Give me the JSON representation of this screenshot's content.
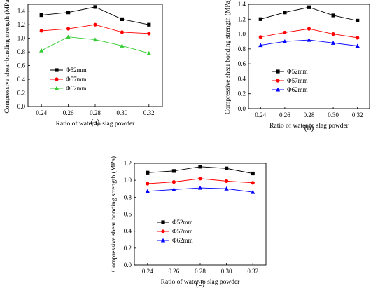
{
  "chart_data": [
    {
      "type": "line",
      "panel_label": "(a)",
      "xlabel": "Ratio of water to slag powder",
      "ylabel": "Compressive shear bonding strength (MPa)",
      "x": [
        0.24,
        0.26,
        0.28,
        0.3,
        0.32
      ],
      "x_tick_labels": [
        "0.24",
        "0.26",
        "0.28",
        "0.30",
        "0.32"
      ],
      "xlim": [
        0.23,
        0.33
      ],
      "ylim": [
        0.0,
        1.5
      ],
      "y_ticks": [
        0.0,
        0.2,
        0.4,
        0.6,
        0.8,
        1.0,
        1.2,
        1.4
      ],
      "y_tick_labels": [
        "0.0",
        "0.2",
        "0.4",
        "0.6",
        "0.8",
        "1.0",
        "1.2",
        "1.4"
      ],
      "grid": false,
      "legend_position": "middle-left",
      "series": [
        {
          "name": "Φ52mm",
          "color": "#000000",
          "marker": "square",
          "values": [
            1.34,
            1.38,
            1.46,
            1.28,
            1.2
          ]
        },
        {
          "name": "Φ57mm",
          "color": "#ff0000",
          "marker": "circle",
          "values": [
            1.11,
            1.14,
            1.2,
            1.09,
            1.07
          ]
        },
        {
          "name": "Φ62mm",
          "color": "#33cc33",
          "marker": "triangle",
          "values": [
            0.82,
            1.02,
            0.98,
            0.89,
            0.78
          ]
        }
      ]
    },
    {
      "type": "line",
      "panel_label": "(b)",
      "xlabel": "Ratio of water to slag powder",
      "ylabel": "Compressive shear bonding strength (MPa)",
      "x": [
        0.24,
        0.26,
        0.28,
        0.3,
        0.32
      ],
      "x_tick_labels": [
        "0.24",
        "0.26",
        "0.28",
        "0.30",
        "0.32"
      ],
      "xlim": [
        0.23,
        0.33
      ],
      "ylim": [
        0.0,
        1.4
      ],
      "y_ticks": [
        0.0,
        0.2,
        0.4,
        0.6,
        0.8,
        1.0,
        1.2,
        1.4
      ],
      "y_tick_labels": [
        "0.0",
        "0.2",
        "0.4",
        "0.6",
        "0.8",
        "1.0",
        "1.2",
        "1.4"
      ],
      "grid": false,
      "legend_position": "middle-left",
      "series": [
        {
          "name": "Φ52mm",
          "color": "#000000",
          "marker": "square",
          "values": [
            1.2,
            1.29,
            1.36,
            1.25,
            1.18
          ]
        },
        {
          "name": "Φ57mm",
          "color": "#ff0000",
          "marker": "circle",
          "values": [
            0.96,
            1.02,
            1.07,
            1.0,
            0.95
          ]
        },
        {
          "name": "Φ62mm",
          "color": "#0000ff",
          "marker": "triangle",
          "values": [
            0.85,
            0.9,
            0.92,
            0.88,
            0.84
          ]
        }
      ]
    },
    {
      "type": "line",
      "panel_label": "(c)",
      "xlabel": "Ratio of water to slag powder",
      "ylabel": "Compressive shear bonding strength (MPa)",
      "x": [
        0.24,
        0.26,
        0.28,
        0.3,
        0.32
      ],
      "x_tick_labels": [
        "0.24",
        "0.26",
        "0.28",
        "0.30",
        "0.32"
      ],
      "xlim": [
        0.23,
        0.33
      ],
      "ylim": [
        0.0,
        1.2
      ],
      "y_ticks": [
        0.0,
        0.2,
        0.4,
        0.6,
        0.8,
        1.0,
        1.2
      ],
      "y_tick_labels": [
        "0.0",
        "0.2",
        "0.4",
        "0.6",
        "0.8",
        "1.0",
        "1.2"
      ],
      "grid": false,
      "legend_position": "middle-left",
      "series": [
        {
          "name": "Φ52mm",
          "color": "#000000",
          "marker": "square",
          "values": [
            1.09,
            1.11,
            1.16,
            1.14,
            1.08
          ]
        },
        {
          "name": "Φ57mm",
          "color": "#ff0000",
          "marker": "circle",
          "values": [
            0.96,
            0.98,
            1.02,
            0.99,
            0.97
          ]
        },
        {
          "name": "Φ62mm",
          "color": "#0000ff",
          "marker": "triangle",
          "values": [
            0.87,
            0.89,
            0.91,
            0.9,
            0.86
          ]
        }
      ]
    }
  ]
}
